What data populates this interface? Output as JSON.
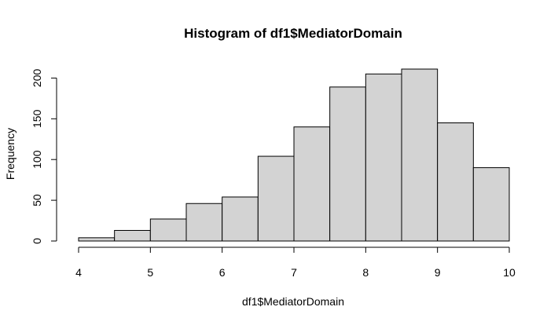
{
  "chart_data": {
    "type": "bar",
    "title": "Histogram of df1$MediatorDomain",
    "xlabel": "df1$MediatorDomain",
    "ylabel": "Frequency",
    "bin_edges": [
      4,
      4.5,
      5,
      5.5,
      6,
      6.5,
      7,
      7.5,
      8,
      8.5,
      9,
      9.5,
      10
    ],
    "values": [
      4,
      13,
      27,
      46,
      54,
      104,
      140,
      189,
      205,
      211,
      145,
      90
    ],
    "xlim": [
      4,
      10
    ],
    "ylim": [
      0,
      211
    ],
    "x_ticks": [
      "4",
      "5",
      "6",
      "7",
      "8",
      "9",
      "10"
    ],
    "y_ticks": [
      "0",
      "50",
      "100",
      "150",
      "200"
    ],
    "bar_fill": "#d3d3d3",
    "grid": false
  }
}
